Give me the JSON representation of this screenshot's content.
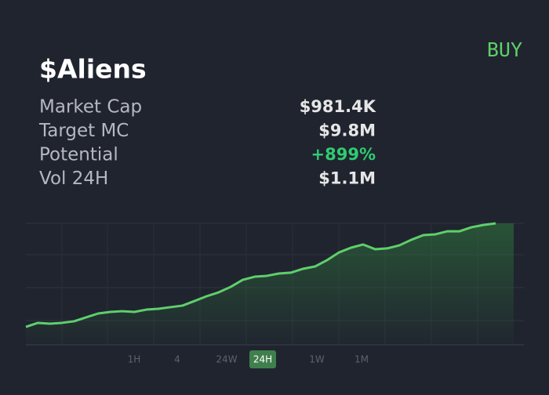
{
  "header": {
    "title": "$Aliens",
    "button": "BUY"
  },
  "stats": [
    {
      "label": "Market Cap",
      "value": "$981.4K",
      "color": "#e6e6e6"
    },
    {
      "label": "Target MC",
      "value": "$9.8M",
      "color": "#e6e6e6"
    },
    {
      "label": "Potential",
      "value": "+899%",
      "color": "#2ecc71"
    },
    {
      "label": "Vol 24H",
      "value": "$1.1M",
      "color": "#e6e6e6"
    }
  ],
  "chart_data": {
    "type": "line",
    "color": "#5fcf6b",
    "ylim": [
      0,
      100
    ],
    "grid": true,
    "values": [
      14.8,
      18.1,
      17.4,
      18.1,
      19.4,
      22.6,
      25.8,
      27.1,
      27.7,
      27.1,
      29.0,
      29.7,
      31.0,
      32.3,
      36.1,
      40.0,
      43.2,
      47.7,
      53.5,
      56.1,
      56.8,
      58.7,
      59.4,
      62.6,
      64.5,
      69.7,
      76.1,
      80.0,
      82.6,
      78.7,
      79.4,
      81.9,
      86.5,
      90.3,
      91.0,
      93.5,
      93.5,
      96.8,
      98.7,
      100
    ]
  },
  "timeframes": {
    "tabs": [
      "1H",
      "4",
      "24W",
      "24H",
      "1W",
      "1M"
    ],
    "active": 3
  }
}
